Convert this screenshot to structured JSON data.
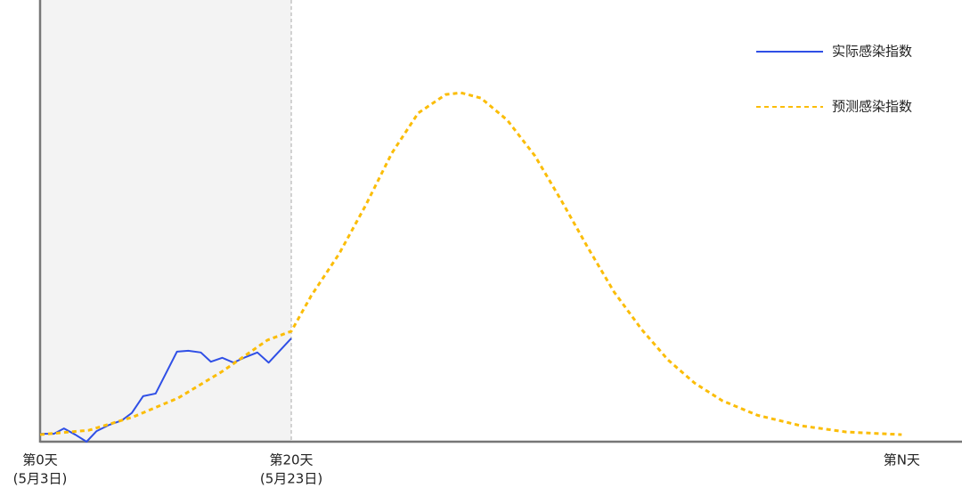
{
  "chart_data": {
    "type": "line",
    "xlim": [
      0,
      73.4
    ],
    "ylim": [
      0,
      100
    ],
    "xticks": [
      {
        "value": 0,
        "label": "第0天"
      },
      {
        "value": 20,
        "label": "第20天"
      },
      {
        "value": 68.6,
        "label": "第N天"
      }
    ],
    "xtick_dates": [
      "(5月3日)",
      "(5月23日)",
      null
    ],
    "shaded_range": [
      0,
      20
    ],
    "legend": "top-right",
    "series": [
      {
        "name": "实际感染指数",
        "color": "#2f4fe6",
        "style": "solid",
        "x": [
          0,
          1.1,
          1.9,
          2.8,
          3.7,
          4.5,
          5.5,
          6.5,
          7.3,
          8.2,
          9.2,
          10.9,
          11.8,
          12.8,
          13.6,
          14.5,
          15.4,
          16.4,
          17.3,
          18.2,
          20
        ],
        "values": [
          1.8,
          1.8,
          3.0,
          1.6,
          0,
          2.4,
          3.8,
          4.8,
          6.5,
          10.3,
          10.9,
          20.4,
          20.6,
          20.2,
          18.1,
          19.0,
          17.9,
          19.2,
          20.2,
          17.9,
          23.4
        ]
      },
      {
        "name": "预测感染指数",
        "color": "#fbbd08",
        "style": "dotted",
        "x": [
          0,
          3.9,
          7.4,
          11.0,
          14.5,
          18.1,
          20,
          21.6,
          23.8,
          25.9,
          28.0,
          30.1,
          32.3,
          33.5,
          35.1,
          37.2,
          39.4,
          41.5,
          43.6,
          45.7,
          47.9,
          50.0,
          52.1,
          54.3,
          57.1,
          60.6,
          64.2,
          68.6
        ],
        "values": [
          1.6,
          2.6,
          5.6,
          9.9,
          15.9,
          23.0,
          25.0,
          33.1,
          42.5,
          53.4,
          65.3,
          74.4,
          78.6,
          79.0,
          77.8,
          72.8,
          64.7,
          54.6,
          44.0,
          33.9,
          25.4,
          18.5,
          13.3,
          9.3,
          6.0,
          3.6,
          2.2,
          1.6
        ]
      }
    ]
  }
}
